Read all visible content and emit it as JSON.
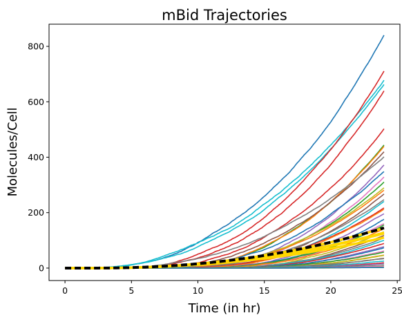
{
  "chart_data": {
    "type": "line",
    "title": "mBid Trajectories",
    "xlabel": "Time (in hr)",
    "ylabel": "Molecules/Cell",
    "xlim": [
      -1.2,
      25.2
    ],
    "ylim": [
      -45,
      880
    ],
    "xticks": [
      0,
      5,
      10,
      15,
      20,
      25
    ],
    "yticks": [
      0,
      200,
      400,
      600,
      800
    ],
    "grid": false,
    "legend": "none",
    "t_range": [
      0,
      24
    ],
    "trajectories": [
      {
        "color": "#1f77b4",
        "t0": 2.0,
        "final": 840,
        "noise": 6
      },
      {
        "color": "#17becf",
        "t0": 1.5,
        "final": 675,
        "noise": 6
      },
      {
        "color": "#17becf",
        "t0": 1.8,
        "final": 668,
        "noise": 5
      },
      {
        "color": "#d62728",
        "t0": 4.5,
        "final": 710,
        "noise": 6
      },
      {
        "color": "#d62728",
        "t0": 5.0,
        "final": 640,
        "noise": 6
      },
      {
        "color": "#d62728",
        "t0": 6.0,
        "final": 505,
        "noise": 5
      },
      {
        "color": "#2ca02c",
        "t0": 8.0,
        "final": 440,
        "noise": 4
      },
      {
        "color": "#ff7f0e",
        "t0": 8.0,
        "final": 430,
        "noise": 4
      },
      {
        "color": "#8c564b",
        "t0": 6.5,
        "final": 418,
        "noise": 4
      },
      {
        "color": "#7f7f7f",
        "t0": 3.5,
        "final": 405,
        "noise": 4
      },
      {
        "color": "#9467bd",
        "t0": 8.5,
        "final": 380,
        "noise": 4
      },
      {
        "color": "#1f77b4",
        "t0": 7.0,
        "final": 350,
        "noise": 4
      },
      {
        "color": "#e377c2",
        "t0": 9.0,
        "final": 330,
        "noise": 4
      },
      {
        "color": "#2ca02c",
        "t0": 9.0,
        "final": 310,
        "noise": 3
      },
      {
        "color": "#bcbd22",
        "t0": 8.0,
        "final": 295,
        "noise": 3
      },
      {
        "color": "#ff7f0e",
        "t0": 7.5,
        "final": 285,
        "noise": 3
      },
      {
        "color": "#8c564b",
        "t0": 9.0,
        "final": 270,
        "noise": 3
      },
      {
        "color": "#7f7f7f",
        "t0": 8.0,
        "final": 255,
        "noise": 3
      },
      {
        "color": "#17becf",
        "t0": 9.5,
        "final": 240,
        "noise": 3
      },
      {
        "color": "#d62728",
        "t0": 8.0,
        "final": 225,
        "noise": 3
      },
      {
        "color": "#ff7f0e",
        "t0": 9.0,
        "final": 210,
        "noise": 3
      },
      {
        "color": "#9467bd",
        "t0": 9.5,
        "final": 195,
        "noise": 3
      },
      {
        "color": "#1f77b4",
        "t0": 10.0,
        "final": 180,
        "noise": 3
      },
      {
        "color": "#e377c2",
        "t0": 10.0,
        "final": 165,
        "noise": 3
      },
      {
        "color": "#2ca02c",
        "t0": 10.0,
        "final": 150,
        "noise": 3
      },
      {
        "color": "#ff7f0e",
        "t0": 10.5,
        "final": 140,
        "noise": 3
      },
      {
        "color": "#bcbd22",
        "t0": 10.5,
        "final": 130,
        "noise": 3
      },
      {
        "color": "#8c564b",
        "t0": 11.0,
        "final": 120,
        "noise": 2
      },
      {
        "color": "#7f7f7f",
        "t0": 11.0,
        "final": 110,
        "noise": 2
      },
      {
        "color": "#17becf",
        "t0": 11.0,
        "final": 100,
        "noise": 2
      },
      {
        "color": "#d62728",
        "t0": 11.5,
        "final": 90,
        "noise": 2
      },
      {
        "color": "#9467bd",
        "t0": 11.5,
        "final": 80,
        "noise": 2
      },
      {
        "color": "#1f77b4",
        "t0": 12.0,
        "final": 70,
        "noise": 2
      },
      {
        "color": "#e377c2",
        "t0": 12.0,
        "final": 62,
        "noise": 2
      },
      {
        "color": "#2ca02c",
        "t0": 12.0,
        "final": 55,
        "noise": 2
      },
      {
        "color": "#ff7f0e",
        "t0": 12.5,
        "final": 48,
        "noise": 2
      },
      {
        "color": "#bcbd22",
        "t0": 12.5,
        "final": 42,
        "noise": 1.5
      },
      {
        "color": "#8c564b",
        "t0": 13.0,
        "final": 36,
        "noise": 1.5
      },
      {
        "color": "#7f7f7f",
        "t0": 13.0,
        "final": 30,
        "noise": 1.5
      },
      {
        "color": "#17becf",
        "t0": 13.0,
        "final": 25,
        "noise": 1.5
      },
      {
        "color": "#d62728",
        "t0": 13.5,
        "final": 20,
        "noise": 1
      },
      {
        "color": "#9467bd",
        "t0": 14.0,
        "final": 15,
        "noise": 1
      },
      {
        "color": "#2ca02c",
        "t0": 14.0,
        "final": 10,
        "noise": 1
      },
      {
        "color": "#e377c2",
        "t0": 15.0,
        "final": 6,
        "noise": 1
      },
      {
        "color": "#bcbd22",
        "t0": 16.0,
        "final": 3,
        "noise": 0.5
      },
      {
        "color": "#1f77b4",
        "t0": 16.0,
        "final": 2,
        "noise": 0.5
      }
    ],
    "mean_band": {
      "color": "#ffd700",
      "t0": 2.0,
      "final": 125,
      "low_final": 110,
      "high_final": 145
    },
    "mean_line": {
      "color": "#000000",
      "t0": 2.0,
      "final": 145,
      "dash": "9,5"
    }
  }
}
